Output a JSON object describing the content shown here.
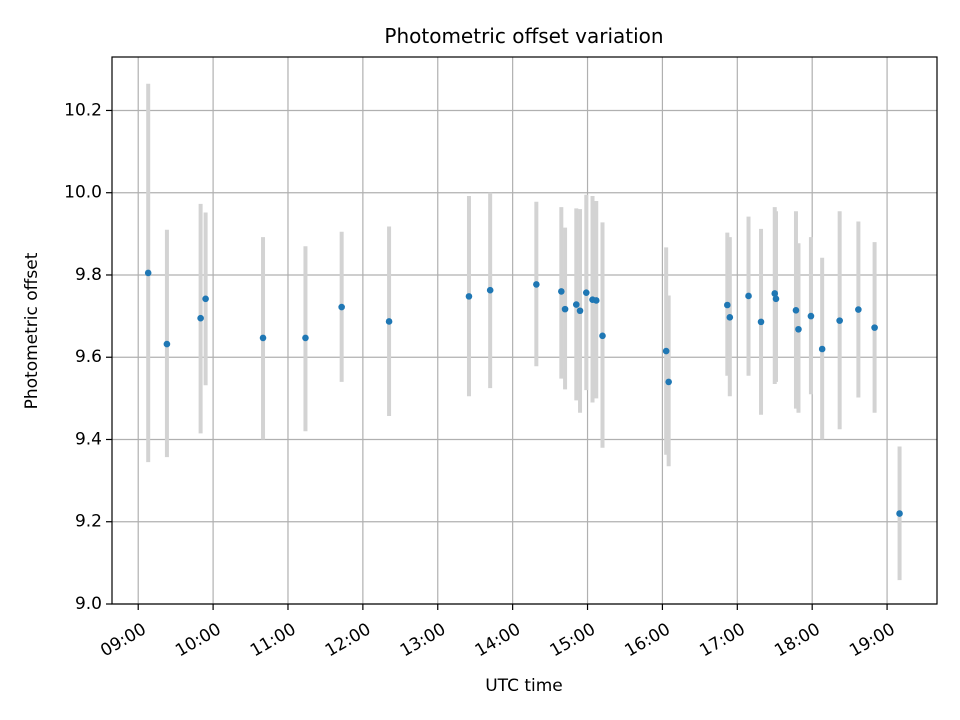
{
  "chart_data": {
    "type": "scatter",
    "title": "Photometric offset variation",
    "xlabel": "UTC time",
    "ylabel": "Photometric offset",
    "xlim": [
      "08:39",
      "19:40"
    ],
    "ylim": [
      9.0,
      10.33
    ],
    "grid": true,
    "x_ticks": [
      "09:00",
      "10:00",
      "11:00",
      "12:00",
      "13:00",
      "14:00",
      "15:00",
      "16:00",
      "17:00",
      "18:00",
      "19:00"
    ],
    "y_ticks": [
      9.0,
      9.2,
      9.4,
      9.6,
      9.8,
      10.0,
      10.2
    ],
    "y_tick_labels": [
      "9.0",
      "9.2",
      "9.4",
      "9.6",
      "9.8",
      "10.0",
      "10.2"
    ],
    "series": [
      {
        "x": [
          "09:08",
          "09:23",
          "09:50",
          "09:54",
          "10:40",
          "11:14",
          "11:43",
          "12:21",
          "13:25",
          "13:42",
          "14:19",
          "14:39",
          "14:42",
          "14:51",
          "14:54",
          "14:59",
          "15:04",
          "15:07",
          "15:12",
          "16:03",
          "16:05",
          "16:52",
          "16:54",
          "17:09",
          "17:19",
          "17:30",
          "17:31",
          "17:47",
          "17:49",
          "17:59",
          "18:08",
          "18:22",
          "18:37",
          "18:50",
          "19:10"
        ],
        "y": [
          9.805,
          9.632,
          9.695,
          9.742,
          9.647,
          9.647,
          9.722,
          9.687,
          9.748,
          9.763,
          9.777,
          9.76,
          9.717,
          9.728,
          9.713,
          9.757,
          9.74,
          9.738,
          9.652,
          9.615,
          9.54,
          9.727,
          9.697,
          9.749,
          9.686,
          9.755,
          9.742,
          9.714,
          9.668,
          9.7,
          9.62,
          9.689,
          9.716,
          9.672,
          9.22
        ],
        "yerr_low": [
          9.345,
          9.357,
          9.415,
          9.532,
          9.4,
          9.42,
          9.54,
          9.457,
          9.505,
          9.525,
          9.578,
          9.548,
          9.522,
          9.495,
          9.465,
          9.52,
          9.49,
          9.5,
          9.38,
          9.363,
          9.335,
          9.555,
          9.505,
          9.555,
          9.46,
          9.535,
          9.54,
          9.475,
          9.465,
          9.51,
          9.4,
          9.425,
          9.502,
          9.465,
          9.058
        ],
        "yerr_high": [
          10.265,
          9.91,
          9.973,
          9.952,
          9.892,
          9.87,
          9.905,
          9.918,
          9.992,
          10.0,
          9.978,
          9.965,
          9.915,
          9.962,
          9.96,
          9.995,
          9.992,
          9.98,
          9.928,
          9.867,
          9.75,
          9.903,
          9.892,
          9.942,
          9.912,
          9.965,
          9.955,
          9.955,
          9.877,
          9.892,
          9.842,
          9.955,
          9.93,
          9.88,
          9.383
        ]
      }
    ],
    "colors": {
      "points": "#1f77b4",
      "error_bars": "#d3d3d3",
      "grid": "#b0b0b0",
      "frame": "#000000"
    }
  }
}
